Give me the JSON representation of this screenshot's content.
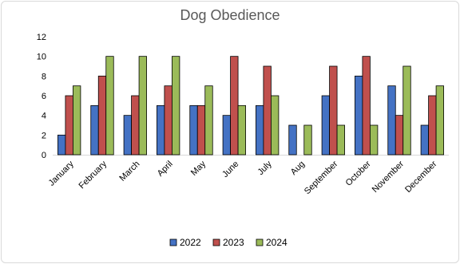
{
  "chart_data": {
    "type": "bar",
    "title": "Dog Obedience",
    "xlabel": "",
    "ylabel": "",
    "ylim": [
      0,
      12
    ],
    "yticks": [
      0,
      2,
      4,
      6,
      8,
      10,
      12
    ],
    "grid": false,
    "legend_position": "bottom",
    "categories": [
      "January",
      "February",
      "March",
      "April",
      "May",
      "June",
      "July",
      "Aug",
      "September",
      "October",
      "November",
      "December"
    ],
    "series": [
      {
        "name": "2022",
        "color": "#4472c4",
        "values": [
          2,
          5,
          4,
          5,
          5,
          4,
          5,
          3,
          6,
          8,
          7,
          3
        ]
      },
      {
        "name": "2023",
        "color": "#c0504d",
        "values": [
          6,
          8,
          6,
          7,
          5,
          10,
          9,
          0,
          9,
          10,
          4,
          6
        ]
      },
      {
        "name": "2024",
        "color": "#9bbb59",
        "values": [
          7,
          10,
          10,
          10,
          7,
          5,
          6,
          3,
          3,
          3,
          9,
          7
        ]
      }
    ]
  }
}
